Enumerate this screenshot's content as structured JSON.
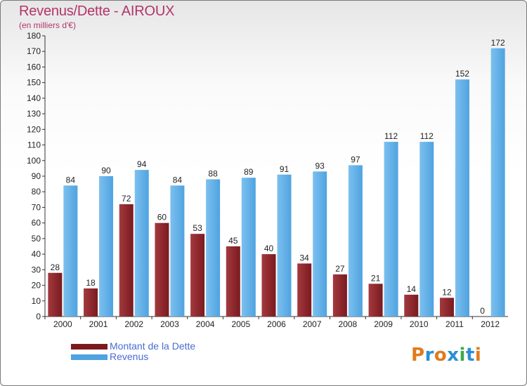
{
  "header": {
    "title": "Revenus/Dette - AIROUX",
    "subtitle": "(en milliers d'€)"
  },
  "legend": {
    "debt_label": "Montant de la Dette",
    "revenue_label": "Revenus"
  },
  "logo": {
    "text": "Proxiti",
    "letter_colors": [
      "#e07b1c",
      "#2a8fd6",
      "#e07b1c",
      "#2a8fd6",
      "#3ea84a",
      "#2a8fd6",
      "#e07b1c"
    ]
  },
  "colors": {
    "debt": "#7a1a1f",
    "debt_light": "#a33a3f",
    "revenue": "#4fa3e0",
    "revenue_light": "#7cc0ef",
    "title": "#b3346a",
    "legend_text": "#4a6cd4"
  },
  "chart_data": {
    "type": "bar",
    "title": "Revenus/Dette - AIROUX",
    "ylabel": "(en milliers d'€)",
    "xlabel": "",
    "categories": [
      "2000",
      "2001",
      "2002",
      "2003",
      "2004",
      "2005",
      "2006",
      "2007",
      "2008",
      "2009",
      "2010",
      "2011",
      "2012"
    ],
    "series": [
      {
        "name": "Montant de la Dette",
        "values": [
          28,
          18,
          72,
          60,
          53,
          45,
          40,
          34,
          27,
          21,
          14,
          12,
          0
        ]
      },
      {
        "name": "Revenus",
        "values": [
          84,
          90,
          94,
          84,
          88,
          89,
          91,
          93,
          97,
          112,
          112,
          152,
          172
        ]
      }
    ],
    "ylim": [
      0,
      180
    ],
    "ytick_step": 10,
    "grid": false,
    "legend_position": "bottom-left"
  }
}
